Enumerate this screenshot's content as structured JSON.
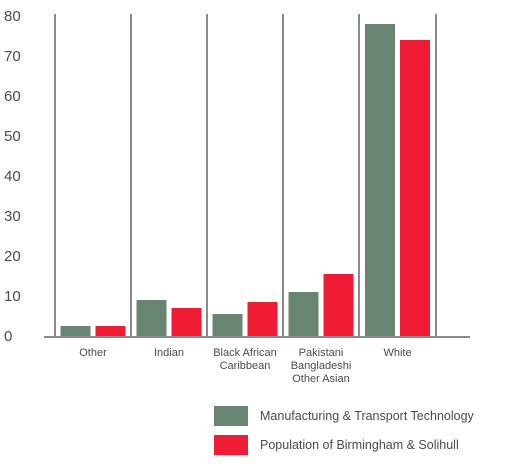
{
  "chart_data": {
    "type": "bar",
    "categories": [
      [
        "Other"
      ],
      [
        "Indian"
      ],
      [
        "Black African",
        "Caribbean"
      ],
      [
        "Pakistani",
        "Bangladeshi",
        "Other Asian"
      ],
      [
        "White"
      ]
    ],
    "series": [
      {
        "name": "Manufacturing & Transport Technology",
        "color": "#688473",
        "values": [
          2.5,
          9,
          5.5,
          11,
          78
        ]
      },
      {
        "name": "Population of Birmingham & Solihull",
        "color": "#ef1c33",
        "values": [
          2.5,
          7,
          8.5,
          15.5,
          74
        ]
      }
    ],
    "ylim": [
      0,
      80
    ],
    "yticks": [
      0,
      10,
      20,
      30,
      40,
      50,
      60,
      70,
      80
    ],
    "grid": "vertical separators between categories",
    "legend_position": "bottom-right"
  }
}
